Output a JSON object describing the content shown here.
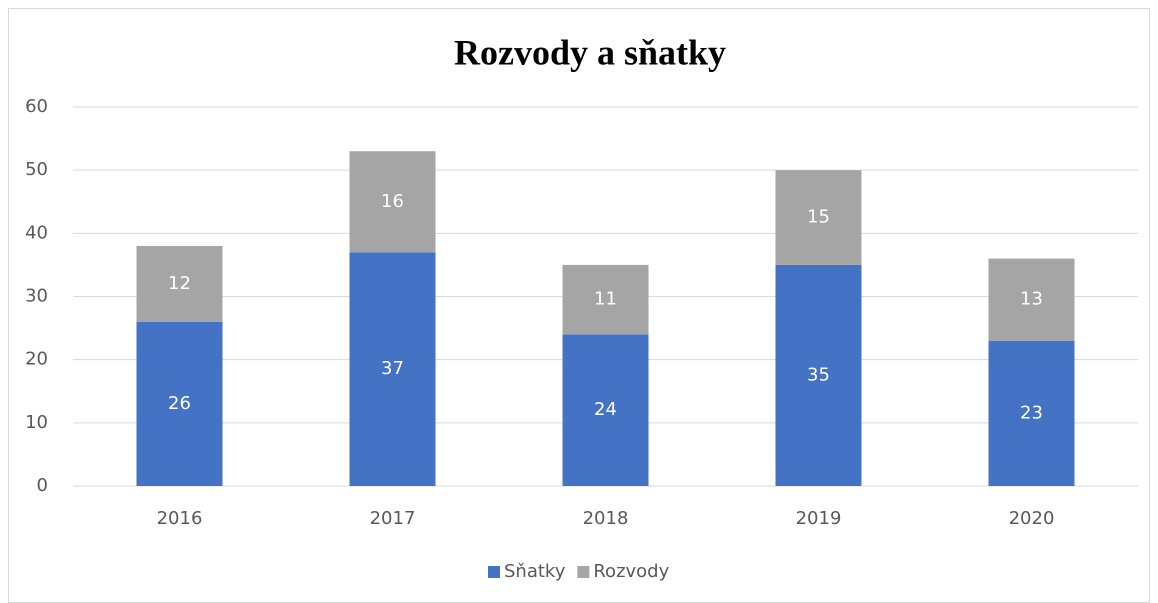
{
  "chart_data": {
    "type": "stacked_bar",
    "title": "Rozvody a sňatky",
    "categories": [
      "2016",
      "2017",
      "2018",
      "2019",
      "2020"
    ],
    "series": [
      {
        "name": "Sňatky",
        "color": "#4472c4",
        "values": [
          26,
          37,
          24,
          35,
          23
        ]
      },
      {
        "name": "Rozvody",
        "color": "#a5a5a5",
        "values": [
          12,
          16,
          11,
          15,
          13
        ]
      }
    ],
    "ylim": [
      0,
      60
    ],
    "yticks": [
      0,
      10,
      20,
      30,
      40,
      50,
      60
    ],
    "grid": true,
    "legend": "bottom"
  }
}
